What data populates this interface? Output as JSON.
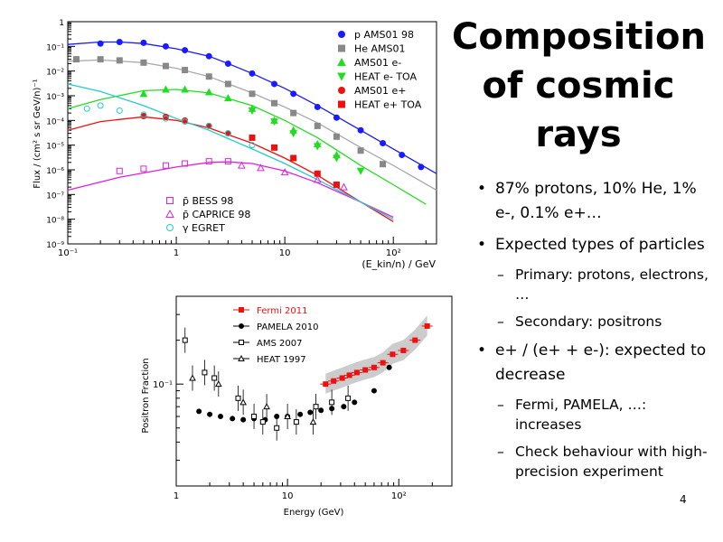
{
  "slide": {
    "title": "Composition of cosmic rays",
    "page_number": "4",
    "bullets": [
      {
        "text": "87% protons, 10% He, 1% e-, 0.1% e+…",
        "subs": []
      },
      {
        "text": "Expected types of particles",
        "subs": [
          "Primary: protons, electrons, …",
          "Secondary: positrons"
        ]
      },
      {
        "text": "e+ / (e+ + e-): expected to decrease",
        "subs": [
          "Fermi, PAMELA, …: increases",
          "Check behaviour with high-precision experiment"
        ]
      }
    ]
  },
  "chart_data": [
    {
      "type": "scatter",
      "ylabel": "Flux / (cm² s sr GeV/n)⁻¹",
      "xlabel": "(E_kin/n) / GeV",
      "x_scale": "log",
      "y_scale": "log",
      "xlim": [
        0.1,
        250
      ],
      "ylim": [
        1e-09,
        1
      ],
      "x_ticks": [
        "10⁻¹",
        "1",
        "10",
        "10²"
      ],
      "y_ticks": [
        "1",
        "10⁻¹",
        "10⁻²",
        "10⁻³",
        "10⁻⁴",
        "10⁻⁵",
        "10⁻⁶",
        "10⁻⁷",
        "10⁻⁸",
        "10⁻⁹"
      ],
      "legend_top": [
        "p AMS01 98",
        "He AMS01",
        "AMS01 e-",
        "HEAT e- TOA",
        "AMS01 e+",
        "HEAT e+ TOA"
      ],
      "legend_bottom": [
        "p̄ BESS 98",
        "p̄ CAPRICE 98",
        "γ EGRET"
      ],
      "colors": {
        "proton": "#1a1aff",
        "helium": "#888888",
        "electron": "#22dd22",
        "positron": "#ee1111",
        "antiproton": "#dd22dd",
        "gamma": "#22cccc"
      },
      "series": [
        {
          "name": "p AMS01 98",
          "x": [
            0.2,
            0.3,
            0.5,
            0.8,
            1.2,
            2,
            3,
            5,
            8,
            12,
            20,
            30,
            50,
            80,
            120,
            180
          ],
          "y": [
            0.13,
            0.15,
            0.14,
            0.1,
            0.07,
            0.04,
            0.02,
            0.008,
            0.003,
            0.0012,
            0.00035,
            0.00013,
            4e-05,
            1.2e-05,
            4e-06,
            1.3e-06
          ]
        },
        {
          "name": "He AMS01",
          "x": [
            0.12,
            0.2,
            0.3,
            0.5,
            0.8,
            1.2,
            2,
            3,
            5,
            8,
            12,
            20,
            30,
            50,
            80
          ],
          "y": [
            0.03,
            0.03,
            0.027,
            0.022,
            0.016,
            0.011,
            0.006,
            0.003,
            0.0012,
            0.0005,
            0.0002,
            6e-05,
            2.2e-05,
            6e-06,
            1.7e-06
          ]
        },
        {
          "name": "AMS01 e-",
          "x": [
            0.5,
            0.8,
            1.2,
            2,
            3,
            5,
            8,
            12,
            20,
            30
          ],
          "y": [
            0.0012,
            0.0018,
            0.0018,
            0.0014,
            0.0008,
            0.0003,
            0.0001,
            4e-05,
            1.1e-05,
            4e-06
          ]
        },
        {
          "name": "HEAT e- TOA",
          "x": [
            5,
            8,
            12,
            20,
            30,
            50
          ],
          "y": [
            0.00025,
            9e-05,
            3e-05,
            9e-06,
            3e-06,
            9e-07
          ]
        },
        {
          "name": "AMS01 e+",
          "x": [
            0.5,
            0.8,
            1.2,
            2,
            3
          ],
          "y": [
            0.00015,
            0.00014,
            0.0001,
            6e-05,
            3e-05
          ]
        },
        {
          "name": "HEAT e+ TOA",
          "x": [
            5,
            8,
            12,
            20,
            30
          ],
          "y": [
            2e-05,
            8e-06,
            3e-06,
            7e-07,
            2.5e-07
          ]
        },
        {
          "name": "p̄ BESS 98",
          "x": [
            0.3,
            0.5,
            0.8,
            1.2,
            2,
            3
          ],
          "y": [
            9e-07,
            1.1e-06,
            1.5e-06,
            1.8e-06,
            2.2e-06,
            2.2e-06
          ]
        },
        {
          "name": "p̄ CAPRICE 98",
          "x": [
            4,
            6,
            10,
            20,
            35
          ],
          "y": [
            1.5e-06,
            1.2e-06,
            8e-07,
            4e-07,
            2e-07
          ]
        },
        {
          "name": "γ EGRET",
          "x": [
            0.15,
            0.2,
            0.3,
            0.5,
            0.8,
            1.2,
            2,
            3,
            5
          ],
          "y": [
            0.0003,
            0.0004,
            0.00025,
            0.00017,
            0.00012,
            9e-05,
            6e-05,
            3e-05,
            1e-05
          ]
        }
      ],
      "curves": {
        "proton": {
          "x": [
            0.1,
            0.2,
            0.3,
            0.5,
            1,
            2,
            3,
            5,
            10,
            20,
            50,
            100,
            250
          ],
          "y": [
            0.12,
            0.15,
            0.15,
            0.13,
            0.08,
            0.04,
            0.02,
            0.008,
            0.002,
            0.0004,
            4e-05,
            7e-06,
            7e-07
          ]
        },
        "helium": {
          "x": [
            0.1,
            0.2,
            0.5,
            1,
            2,
            5,
            10,
            20,
            50,
            100,
            250
          ],
          "y": [
            0.025,
            0.028,
            0.022,
            0.013,
            0.006,
            0.0013,
            0.00035,
            8e-05,
            8e-06,
            1.5e-06,
            1.5e-07
          ]
        },
        "electron": {
          "x": [
            0.1,
            0.2,
            0.5,
            1,
            2,
            5,
            10,
            20,
            50,
            100,
            200
          ],
          "y": [
            0.0003,
            0.0007,
            0.0016,
            0.0018,
            0.0013,
            0.0004,
            0.0001,
            2e-05,
            1.5e-06,
            2.5e-07,
            4e-08
          ]
        },
        "positron": {
          "x": [
            0.1,
            0.2,
            0.5,
            1,
            2,
            5,
            10,
            20,
            50,
            100
          ],
          "y": [
            4e-05,
            9e-05,
            0.00014,
            0.0001,
            5e-05,
            1.2e-05,
            3e-06,
            6e-07,
            5e-08,
            8e-09
          ]
        },
        "antiproton": {
          "x": [
            0.1,
            0.3,
            1,
            2,
            3,
            5,
            10,
            20,
            50,
            100
          ],
          "y": [
            1.5e-07,
            5e-07,
            1.3e-06,
            2e-06,
            2.1e-06,
            1.8e-06,
            9e-07,
            3e-07,
            5e-08,
            1.2e-08
          ]
        },
        "gamma": {
          "x": [
            0.1,
            0.2,
            0.5,
            1,
            2,
            5,
            10,
            20,
            50,
            100
          ],
          "y": [
            0.003,
            0.0015,
            0.0004,
            0.00012,
            4e-05,
            7e-06,
            1.8e-06,
            4e-07,
            5e-08,
            1e-08
          ]
        }
      }
    },
    {
      "type": "scatter",
      "ylabel": "Positron Fraction",
      "xlabel": "Energy (GeV)",
      "x_scale": "log",
      "y_scale": "log",
      "xlim": [
        1,
        300
      ],
      "ylim": [
        0.02,
        0.4
      ],
      "x_ticks": [
        "1",
        "10",
        "10²"
      ],
      "y_ticks": [
        "10⁻¹"
      ],
      "legend": [
        "Fermi 2011",
        "PAMELA 2010",
        "AMS 2007",
        "HEAT 1997"
      ],
      "colors": {
        "fermi": "#ee1111",
        "pamela": "#000000",
        "band": "#cccccc"
      },
      "series": [
        {
          "name": "Fermi 2011",
          "x": [
            22,
            26,
            31,
            36,
            42,
            50,
            60,
            72,
            88,
            110,
            140,
            180
          ],
          "y": [
            0.1,
            0.105,
            0.11,
            0.115,
            0.12,
            0.125,
            0.13,
            0.14,
            0.16,
            0.17,
            0.2,
            0.25
          ]
        },
        {
          "name": "PAMELA 2010",
          "x": [
            1.6,
            2.0,
            2.5,
            3.2,
            4,
            5,
            6.3,
            8,
            10,
            13,
            16,
            20,
            25,
            32,
            40,
            60,
            82
          ],
          "y": [
            0.065,
            0.062,
            0.06,
            0.058,
            0.057,
            0.058,
            0.057,
            0.06,
            0.06,
            0.062,
            0.064,
            0.066,
            0.068,
            0.07,
            0.075,
            0.09,
            0.13
          ]
        },
        {
          "name": "AMS 2007",
          "x": [
            1.2,
            1.8,
            2.2,
            3.6,
            5,
            6,
            8,
            12,
            18,
            25,
            35
          ],
          "y": [
            0.2,
            0.12,
            0.11,
            0.08,
            0.06,
            0.055,
            0.05,
            0.055,
            0.07,
            0.075,
            0.08
          ]
        },
        {
          "name": "HEAT 1997",
          "x": [
            1.4,
            2.4,
            4,
            6.5,
            10,
            17
          ],
          "y": [
            0.11,
            0.1,
            0.075,
            0.07,
            0.06,
            0.055
          ]
        }
      ]
    }
  ]
}
